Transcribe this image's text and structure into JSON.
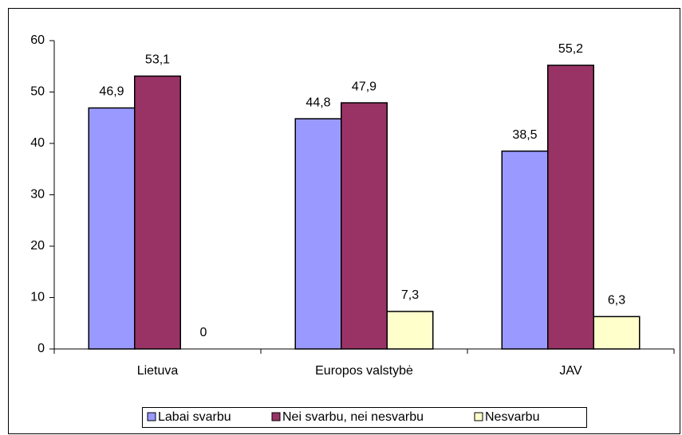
{
  "chart_data": {
    "type": "bar",
    "categories": [
      "Lietuva",
      "Europos valstybė",
      "JAV"
    ],
    "series": [
      {
        "name": "Labai svarbu",
        "color": "#9999ff",
        "values": [
          46.9,
          44.8,
          38.5
        ],
        "value_labels": [
          "46,9",
          "44,8",
          "38,5"
        ]
      },
      {
        "name": "Nei svarbu, nei nesvarbu",
        "color": "#993366",
        "values": [
          53.1,
          47.9,
          55.2
        ],
        "value_labels": [
          "53,1",
          "47,9",
          "55,2"
        ]
      },
      {
        "name": "Nesvarbu",
        "color": "#ffffcc",
        "values": [
          0,
          7.3,
          6.3
        ],
        "value_labels": [
          "0",
          "7,3",
          "6,3"
        ]
      }
    ],
    "ylim": [
      0,
      60
    ],
    "yticks": [
      0,
      10,
      20,
      30,
      40,
      50,
      60
    ],
    "grid": false,
    "legend": "bottom"
  }
}
